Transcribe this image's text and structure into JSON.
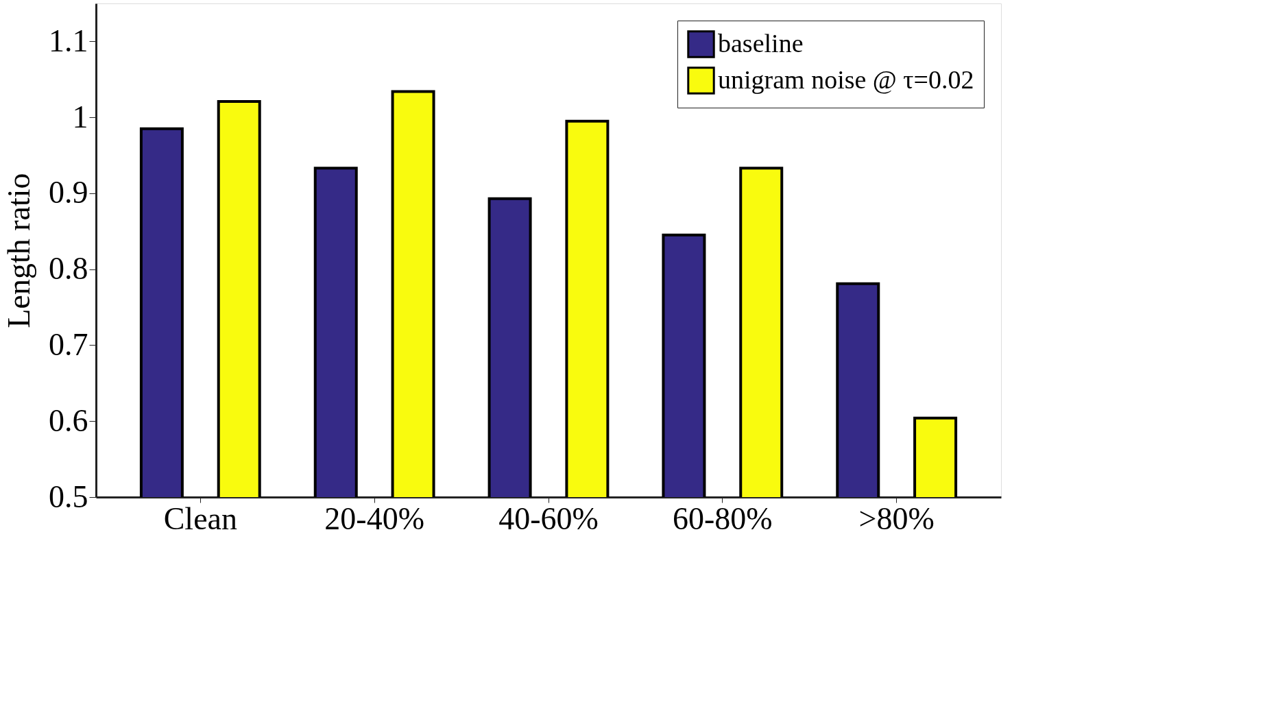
{
  "chart_data": {
    "type": "bar",
    "ylabel": "Length ratio",
    "categories": [
      "Clean",
      "20-40%",
      "40-60%",
      "60-80%",
      ">80%"
    ],
    "series": [
      {
        "name": "baseline",
        "color": "#352a87",
        "values": [
          0.985,
          0.933,
          0.893,
          0.845,
          0.781
        ]
      },
      {
        "name": "unigram noise @ τ=0.02",
        "color": "#f9fb0e",
        "values": [
          1.021,
          1.034,
          0.995,
          0.933,
          0.604
        ]
      }
    ],
    "ylim": [
      0.5,
      1.15
    ],
    "yticks": [
      0.5,
      0.6,
      0.7,
      0.8,
      0.9,
      {
        "value": 1,
        "label": "1"
      },
      1.1
    ],
    "grid": false,
    "legend": "top right"
  }
}
